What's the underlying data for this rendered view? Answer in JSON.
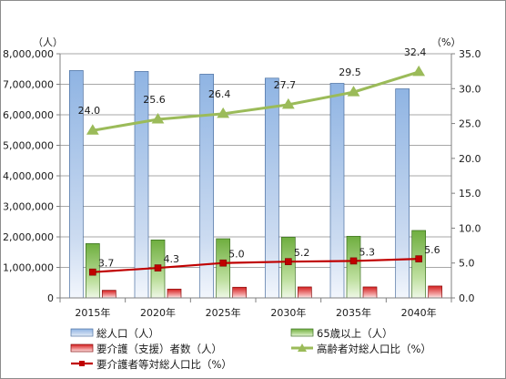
{
  "chart_data": {
    "type": "bar",
    "categories": [
      "2015年",
      "2020年",
      "2025年",
      "2030年",
      "2035年",
      "2040年"
    ],
    "left_axis": {
      "unit": "（人）",
      "ylim": [
        0,
        8000000
      ],
      "ticks": [
        "0",
        "1,000,000",
        "2,000,000",
        "3,000,000",
        "4,000,000",
        "5,000,000",
        "6,000,000",
        "7,000,000",
        "8,000,000"
      ]
    },
    "right_axis": {
      "unit": "（%）",
      "ylim": [
        0,
        35
      ],
      "ticks": [
        "0.0",
        "5.0",
        "10.0",
        "15.0",
        "20.0",
        "25.0",
        "30.0",
        "35.0"
      ]
    },
    "bar_series": [
      {
        "name": "総人口（人）",
        "values": [
          7450000,
          7420000,
          7330000,
          7200000,
          7030000,
          6850000
        ],
        "color": "#8db3e2"
      },
      {
        "name": "65歳以上（人）",
        "values": [
          1780000,
          1900000,
          1940000,
          1990000,
          2020000,
          2210000
        ],
        "color": "#77b54a"
      },
      {
        "name": "要介護（支援）者数（人）",
        "values": [
          250000,
          290000,
          350000,
          360000,
          360000,
          390000
        ],
        "color": "#e03a3a"
      }
    ],
    "line_series": [
      {
        "name": "高齢者対総人口比（%）",
        "values": [
          24.0,
          25.6,
          26.4,
          27.7,
          29.5,
          32.4
        ],
        "labels": [
          "24.0",
          "25.6",
          "26.4",
          "27.7",
          "29.5",
          "32.4"
        ],
        "color": "#9bbb59",
        "marker": "triangle"
      },
      {
        "name": "要介護者等対総人口比（%）",
        "values": [
          3.7,
          4.3,
          5.0,
          5.2,
          5.3,
          5.6
        ],
        "labels": [
          "3.7",
          "4.3",
          "5.0",
          "5.2",
          "5.3",
          "5.6"
        ],
        "color": "#c00000",
        "marker": "square"
      }
    ],
    "grid": true,
    "legend_position": "bottom"
  }
}
